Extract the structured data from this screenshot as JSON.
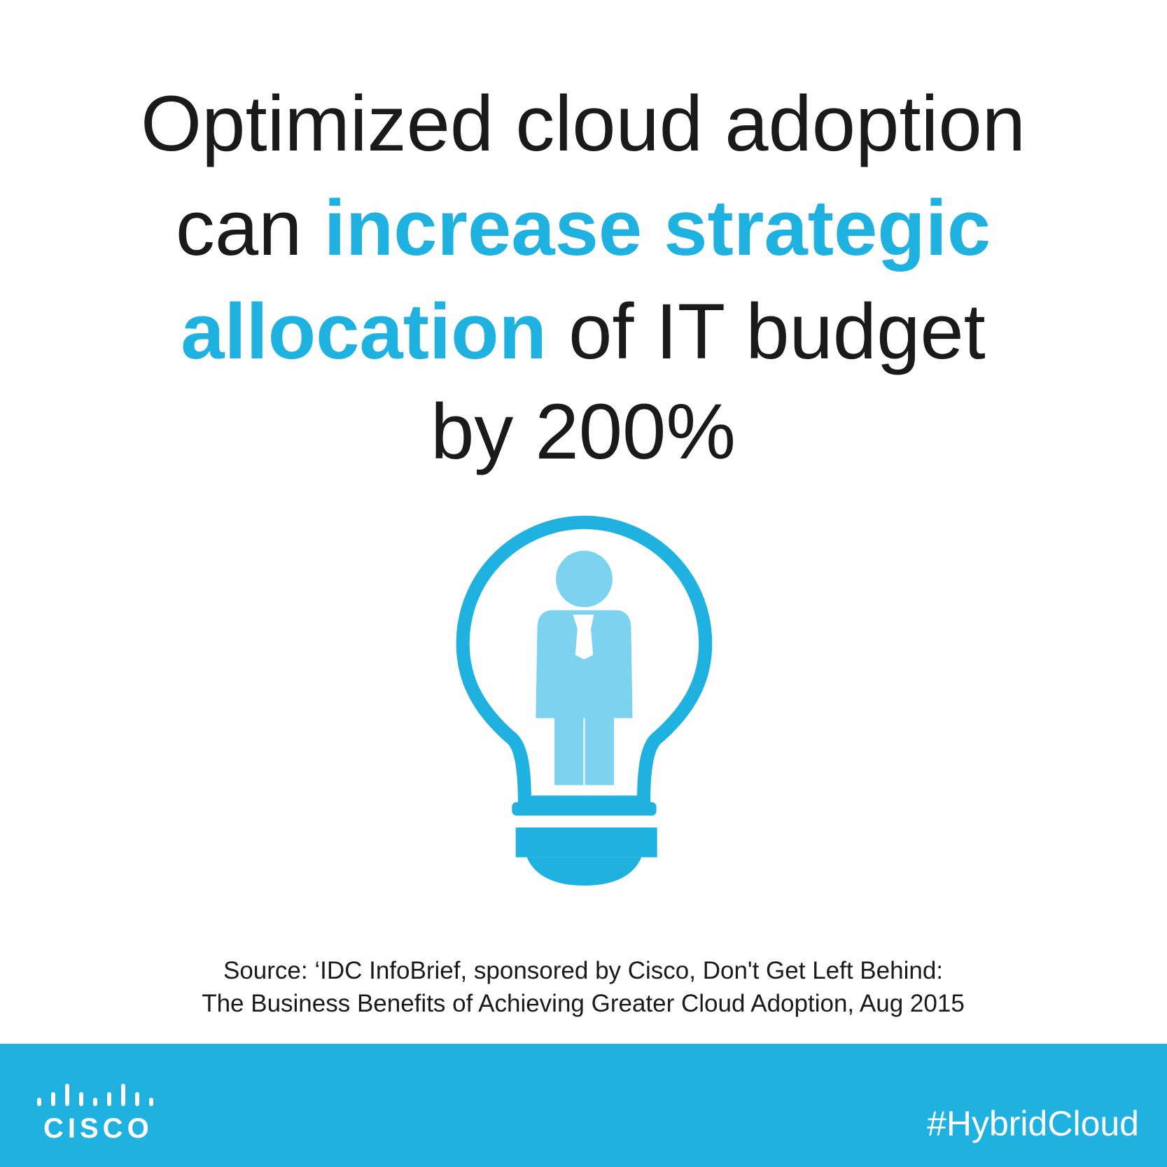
{
  "headline": {
    "line1": "Optimized cloud adoption",
    "line2_normal": "can",
    "line2_bold": "increase strategic",
    "line3_bold": "allocation",
    "line3_normal": "of IT budget",
    "line4": "by 200%"
  },
  "source": {
    "line1": "Source: ‘IDC InfoBrief, sponsored by Cisco, Don't Get Left Behind:",
    "line2": "The Business Benefits of Achieving Greater Cloud Adoption, Aug 2015"
  },
  "footer": {
    "logo": "CISCO",
    "hashtag": "#HybridCloud"
  }
}
